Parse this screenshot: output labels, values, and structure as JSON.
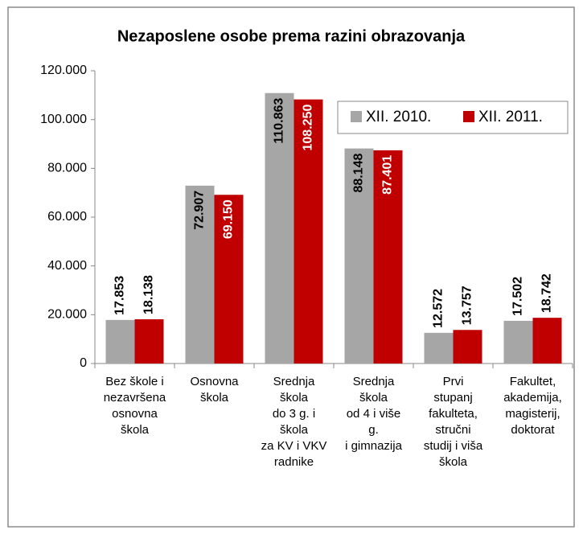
{
  "chart_data": {
    "type": "bar",
    "title": "Nezaposlene osobe prema razini obrazovanja",
    "categories": [
      [
        "Bez škole i",
        "nezavršena",
        "osnovna",
        "škola"
      ],
      [
        "Osnovna",
        "škola"
      ],
      [
        "Srednja",
        "škola",
        "do 3 g. i",
        "škola",
        "za KV i VKV",
        "radnike"
      ],
      [
        "Srednja",
        "škola",
        "od 4 i više",
        "g.",
        "i gimnazija"
      ],
      [
        "Prvi",
        "stupanj",
        "fakulteta,",
        "stručni",
        "studij i viša",
        "škola"
      ],
      [
        "Fakultet,",
        "akademija,",
        "magisterij,",
        "doktorat"
      ]
    ],
    "series": [
      {
        "name": "XII. 2010.",
        "color": "#a6a6a6",
        "values": [
          17853,
          72907,
          110863,
          88148,
          12572,
          17502
        ],
        "value_labels": [
          "17.853",
          "72.907",
          "110.863",
          "88.148",
          "12.572",
          "17.502"
        ]
      },
      {
        "name": "XII. 2011.",
        "color": "#c00000",
        "values": [
          18138,
          69150,
          108250,
          87401,
          13757,
          18742
        ],
        "value_labels": [
          "18.138",
          "69.150",
          "108.250",
          "87.401",
          "13.757",
          "18.742"
        ]
      }
    ],
    "ylim": [
      0,
      120000
    ],
    "yticks": [
      0,
      {
        "value": 20000,
        "label": "20.000"
      },
      {
        "value": 40000,
        "label": "40.000"
      },
      {
        "value": 60000,
        "label": "60.000"
      },
      {
        "value": 80000,
        "label": "80.000"
      },
      {
        "value": 100000,
        "label": "100.000"
      },
      {
        "value": 120000,
        "label": "120.000"
      }
    ],
    "grid": false,
    "legend": "top-right"
  }
}
